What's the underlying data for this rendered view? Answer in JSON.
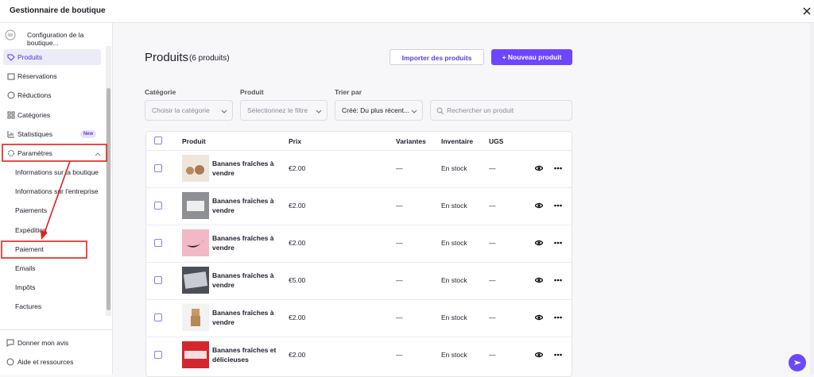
{
  "header": {
    "title": "Gestionnaire de boutique"
  },
  "sidebar": {
    "store": "Configuration de la boutique...",
    "items": [
      "Produits",
      "Réservations",
      "Réductions",
      "Catégories",
      "Statistiques",
      "Paramètres"
    ],
    "badge": "New",
    "subitems": [
      "Informations sur la boutique",
      "Informations sur l'entreprise",
      "Paiements",
      "Expédition",
      "Paiement",
      "Emails",
      "Impôts",
      "Factures"
    ],
    "footer": [
      "Donner mon avis",
      "Aide et ressources"
    ]
  },
  "main": {
    "title": "Produits",
    "count": "(6 produits)",
    "buttons": [
      "Importer des produits",
      "+ Nouveau produit"
    ],
    "filters": [
      {
        "label": "Catégorie",
        "placeholder": "Choisir la catégorie"
      },
      {
        "label": "Produit",
        "placeholder": "Sélectionnez le filtre"
      },
      {
        "label": "Trier par",
        "placeholder": "Créé:  Du plus récent..."
      }
    ],
    "search": "Rechercher un produit",
    "table": {
      "headers": [
        "Produit",
        "Prix",
        "Variantes",
        "Inventaire",
        "UGS"
      ],
      "rows": [
        [
          "Bananes fraîches à vendre",
          "€2.00",
          "—",
          "En stock",
          "—"
        ],
        [
          "Bananes fraîches à vendre",
          "€2.00",
          "—",
          "En stock",
          "—"
        ],
        [
          "Bananes fraîches à vendre",
          "€2.00",
          "—",
          "En stock",
          "—"
        ],
        [
          "Bananes fraîches à vendre",
          "€5.00",
          "—",
          "En stock",
          "—"
        ],
        [
          "Bananes fraîches à vendre",
          "€2.00",
          "—",
          "En stock",
          "—"
        ],
        [
          "Bananes fraîches et délicieuses",
          "€2.00",
          "—",
          "En stock",
          "—"
        ]
      ]
    }
  }
}
